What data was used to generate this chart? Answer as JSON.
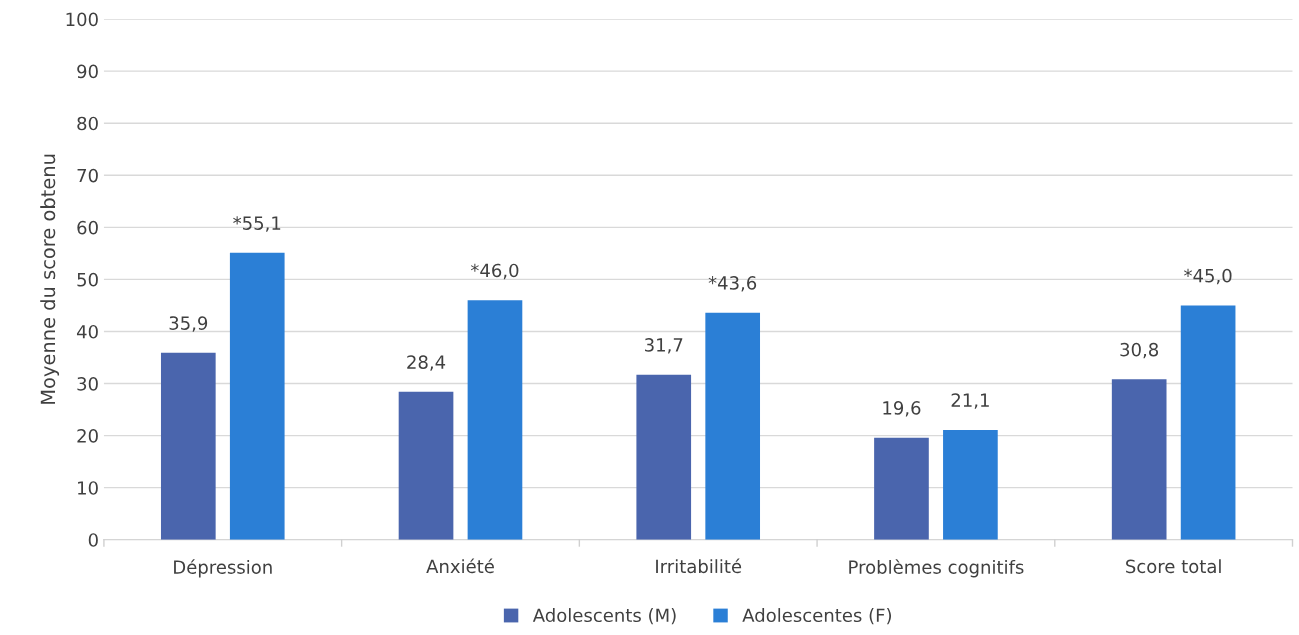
{
  "chart_data": {
    "type": "bar",
    "ylabel": "Moyenne du score obtenu",
    "categories": [
      "Dépression",
      "Anxiété",
      "Irritabilité",
      "Problèmes cognitifs",
      "Score total"
    ],
    "series": [
      {
        "name": "Adolescents (M)",
        "color": "#4a65ad",
        "values": [
          35.9,
          28.4,
          31.7,
          19.6,
          30.8
        ],
        "value_labels": [
          "35,9",
          "28,4",
          "31,7",
          "19,6",
          "30,8"
        ]
      },
      {
        "name": "Adolescentes (F)",
        "color": "#2b7fd6",
        "values": [
          55.1,
          46.0,
          43.6,
          21.1,
          45.0
        ],
        "value_labels": [
          "*55,1",
          "*46,0",
          "*43,6",
          "21,1",
          "*45,0"
        ]
      }
    ],
    "ylim": [
      0,
      100
    ],
    "yticks": [
      0,
      10,
      20,
      30,
      40,
      50,
      60,
      70,
      80,
      90,
      100
    ],
    "grid": "y",
    "legend": "bottom"
  }
}
